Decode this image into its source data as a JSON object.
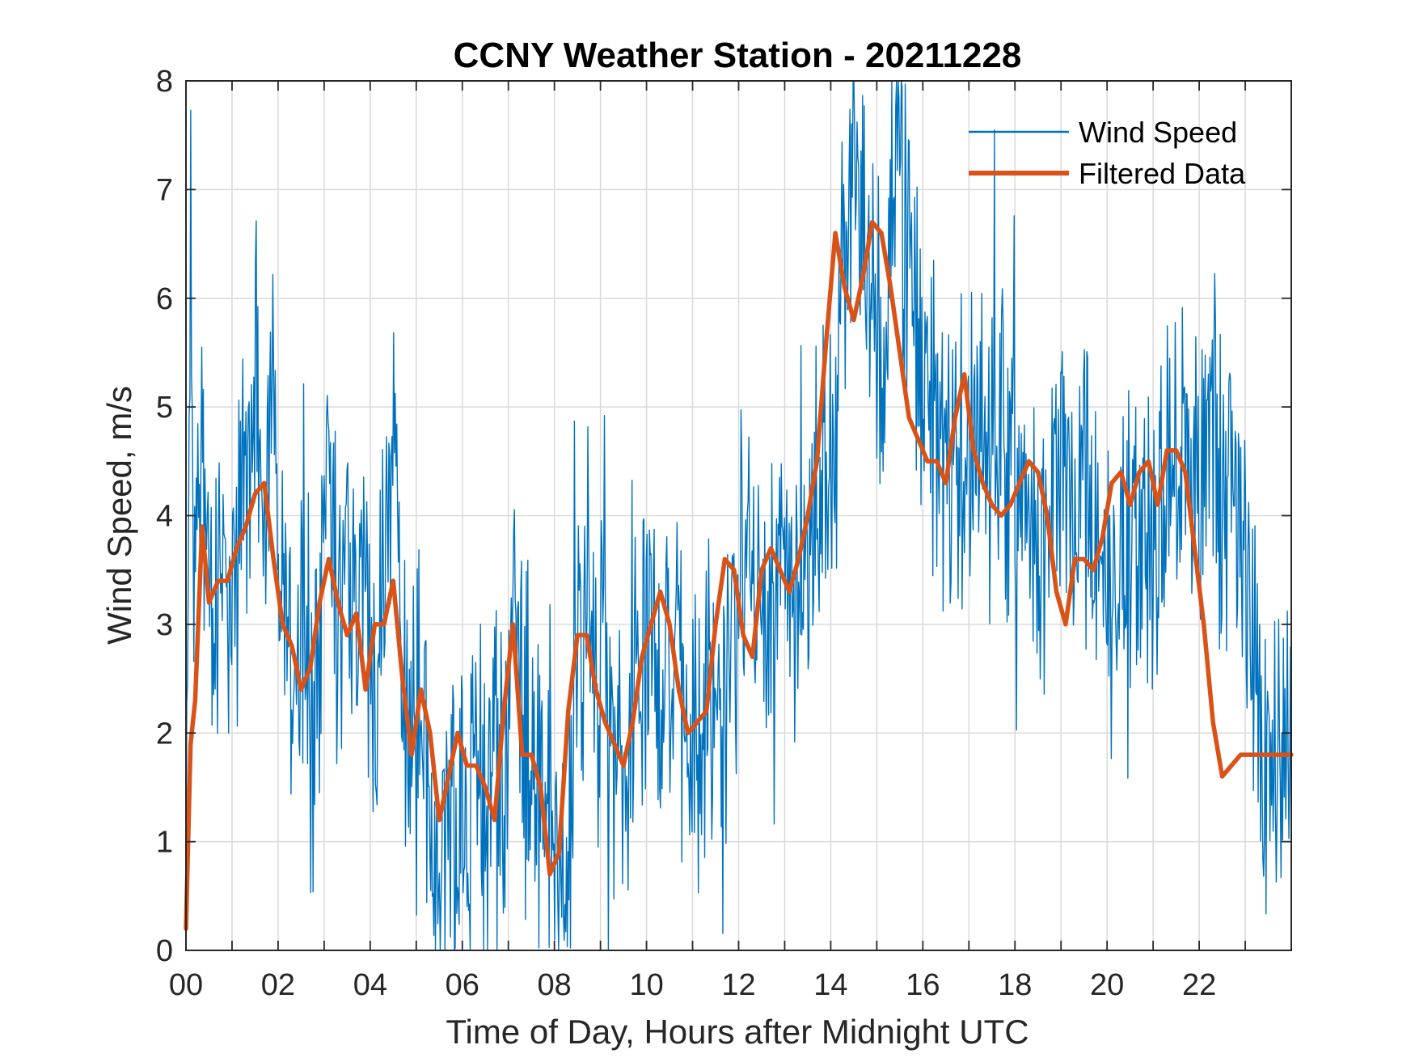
{
  "chart_data": {
    "type": "line",
    "title": "CCNY Weather Station - 20211228",
    "xlabel": "Time of Day, Hours after Midnight UTC",
    "ylabel": "Wind Speed, m/s",
    "xlim": [
      0,
      24
    ],
    "ylim": [
      0,
      8
    ],
    "grid": true,
    "x_ticks": [
      0,
      2,
      4,
      6,
      8,
      10,
      12,
      14,
      16,
      18,
      20,
      22
    ],
    "x_tick_labels": [
      "00",
      "02",
      "04",
      "06",
      "08",
      "10",
      "12",
      "14",
      "16",
      "18",
      "20",
      "22"
    ],
    "y_ticks": [
      0,
      1,
      2,
      3,
      4,
      5,
      6,
      7,
      8
    ],
    "y_tick_labels": [
      "0",
      "1",
      "2",
      "3",
      "4",
      "5",
      "6",
      "7",
      "8"
    ],
    "legend_position": "top-right",
    "series": [
      {
        "name": "Wind Speed",
        "color": "#0072BD",
        "style": "thin-noisy",
        "x": [
          0,
          0.1,
          0.2,
          0.35,
          0.5,
          0.7,
          0.9,
          1.1,
          1.3,
          1.5,
          1.7,
          1.9,
          2.1,
          2.3,
          2.5,
          2.7,
          2.9,
          3.1,
          3.3,
          3.5,
          3.7,
          3.9,
          4.1,
          4.3,
          4.5,
          4.7,
          4.9,
          5.1,
          5.3,
          5.5,
          5.7,
          5.9,
          6.1,
          6.3,
          6.5,
          6.7,
          6.9,
          7.1,
          7.3,
          7.5,
          7.7,
          7.9,
          8.1,
          8.3,
          8.5,
          8.7,
          8.9,
          9.1,
          9.3,
          9.5,
          9.7,
          9.9,
          10.1,
          10.3,
          10.5,
          10.7,
          10.9,
          11.1,
          11.3,
          11.5,
          11.7,
          11.9,
          12.1,
          12.3,
          12.5,
          12.7,
          12.9,
          13.1,
          13.3,
          13.5,
          13.7,
          13.9,
          14.1,
          14.3,
          14.5,
          14.7,
          14.9,
          15.1,
          15.3,
          15.5,
          15.7,
          15.9,
          16.1,
          16.3,
          16.5,
          16.7,
          16.9,
          17.1,
          17.3,
          17.5,
          17.7,
          17.9,
          18.1,
          18.3,
          18.5,
          18.7,
          18.9,
          19.1,
          19.3,
          19.5,
          19.7,
          19.9,
          20.1,
          20.3,
          20.5,
          20.7,
          20.9,
          21.1,
          21.3,
          21.5,
          21.7,
          21.9,
          22.1,
          22.3,
          22.5,
          22.7,
          22.9,
          23.1,
          23.3,
          23.5,
          23.7,
          23.9,
          24
        ],
        "values": [
          0.5,
          6.1,
          3.0,
          4.3,
          3.2,
          2.9,
          3.6,
          4.2,
          3.9,
          5.6,
          4.1,
          4.8,
          3.1,
          2.4,
          2.9,
          2.2,
          2.8,
          4.0,
          2.7,
          3.5,
          2.8,
          3.2,
          2.3,
          3.3,
          4.4,
          3.0,
          1.6,
          2.3,
          1.4,
          1.1,
          1.9,
          1.3,
          1.6,
          2.1,
          1.4,
          1.7,
          1.2,
          3.6,
          2.0,
          2.3,
          1.3,
          1.7,
          0.5,
          1.1,
          2.5,
          3.2,
          2.9,
          2.4,
          2.0,
          1.6,
          2.6,
          2.9,
          3.0,
          2.5,
          2.6,
          2.4,
          2.0,
          1.6,
          2.1,
          2.2,
          2.3,
          3.1,
          3.5,
          3.4,
          2.7,
          3.0,
          3.9,
          3.2,
          3.5,
          3.3,
          4.0,
          4.4,
          4.7,
          6.6,
          6.9,
          7.2,
          6.0,
          5.9,
          6.8,
          7.3,
          6.6,
          5.7,
          5.1,
          4.8,
          4.6,
          4.7,
          4.3,
          4.9,
          4.8,
          4.6,
          5.2,
          4.4,
          4.2,
          4.3,
          3.9,
          3.8,
          4.2,
          4.4,
          4.1,
          4.2,
          3.6,
          3.5,
          3.0,
          3.4,
          3.8,
          3.6,
          3.5,
          3.9,
          4.1,
          4.4,
          4.2,
          4.4,
          4.3,
          5.2,
          3.9,
          4.3,
          3.8,
          3.2,
          2.1,
          1.6,
          1.6,
          2.0,
          1.8
        ],
        "y_range_observed": [
          0.0,
          7.95
        ]
      },
      {
        "name": "Filtered Data",
        "color": "#D95319",
        "style": "thick-smooth",
        "x": [
          0,
          0.1,
          0.2,
          0.35,
          0.5,
          0.7,
          0.9,
          1.1,
          1.3,
          1.5,
          1.7,
          1.9,
          2.1,
          2.3,
          2.5,
          2.7,
          2.9,
          3.1,
          3.3,
          3.5,
          3.7,
          3.9,
          4.1,
          4.3,
          4.5,
          4.7,
          4.9,
          5.1,
          5.3,
          5.5,
          5.7,
          5.9,
          6.1,
          6.3,
          6.5,
          6.7,
          6.9,
          7.1,
          7.3,
          7.5,
          7.7,
          7.9,
          8.1,
          8.3,
          8.5,
          8.7,
          8.9,
          9.1,
          9.3,
          9.5,
          9.7,
          9.9,
          10.1,
          10.3,
          10.5,
          10.7,
          10.9,
          11.1,
          11.3,
          11.5,
          11.7,
          11.9,
          12.1,
          12.3,
          12.5,
          12.7,
          12.9,
          13.1,
          13.3,
          13.5,
          13.7,
          13.9,
          14.1,
          14.3,
          14.5,
          14.7,
          14.9,
          15.1,
          15.3,
          15.5,
          15.7,
          15.9,
          16.1,
          16.3,
          16.5,
          16.7,
          16.9,
          17.1,
          17.3,
          17.5,
          17.7,
          17.9,
          18.1,
          18.3,
          18.5,
          18.7,
          18.9,
          19.1,
          19.3,
          19.5,
          19.7,
          19.9,
          20.1,
          20.3,
          20.5,
          20.7,
          20.9,
          21.1,
          21.3,
          21.5,
          21.7,
          21.9,
          22.1,
          22.3,
          22.5,
          22.7,
          22.9,
          23.1,
          23.3,
          23.5,
          23.7,
          23.9,
          24
        ],
        "values": [
          0.2,
          1.9,
          2.3,
          3.9,
          3.2,
          3.4,
          3.4,
          3.7,
          3.9,
          4.2,
          4.3,
          3.6,
          3.0,
          2.8,
          2.4,
          2.6,
          3.2,
          3.6,
          3.2,
          2.9,
          3.1,
          2.4,
          3.0,
          3.0,
          3.4,
          2.5,
          1.8,
          2.4,
          2.0,
          1.2,
          1.6,
          2.0,
          1.7,
          1.7,
          1.5,
          1.2,
          2.2,
          3.0,
          1.8,
          1.8,
          1.5,
          0.7,
          0.9,
          2.2,
          2.9,
          2.9,
          2.4,
          2.1,
          1.9,
          1.7,
          2.1,
          2.7,
          3.0,
          3.3,
          3.0,
          2.4,
          2.0,
          2.1,
          2.2,
          3.0,
          3.6,
          3.5,
          2.9,
          2.7,
          3.5,
          3.7,
          3.5,
          3.3,
          3.6,
          4.0,
          4.5,
          5.6,
          6.6,
          6.1,
          5.8,
          6.2,
          6.7,
          6.6,
          6.1,
          5.5,
          4.9,
          4.7,
          4.5,
          4.5,
          4.3,
          4.9,
          5.3,
          4.6,
          4.3,
          4.1,
          4.0,
          4.1,
          4.3,
          4.5,
          4.4,
          4.0,
          3.3,
          3.0,
          3.6,
          3.6,
          3.5,
          3.8,
          4.3,
          4.4,
          4.1,
          4.4,
          4.5,
          4.1,
          4.6,
          4.6,
          4.4,
          3.7,
          3.0,
          2.1,
          1.6,
          1.7,
          1.8,
          1.8,
          1.8,
          1.8,
          1.8,
          1.8,
          1.8
        ]
      }
    ]
  }
}
